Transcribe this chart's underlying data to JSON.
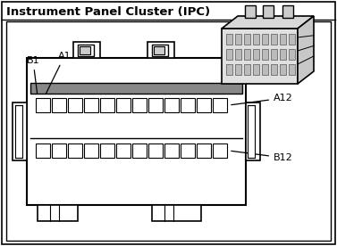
{
  "title": "Instrument Panel Cluster (IPC)",
  "title_fontsize": 9.5,
  "bg_color": "#ffffff",
  "border_color": "#000000",
  "label_B1": "B1",
  "label_A1": "A1",
  "label_A12": "A12",
  "label_B12": "B12",
  "label_fs": 8.0,
  "pin_cols": 12,
  "pin_rows": 2
}
